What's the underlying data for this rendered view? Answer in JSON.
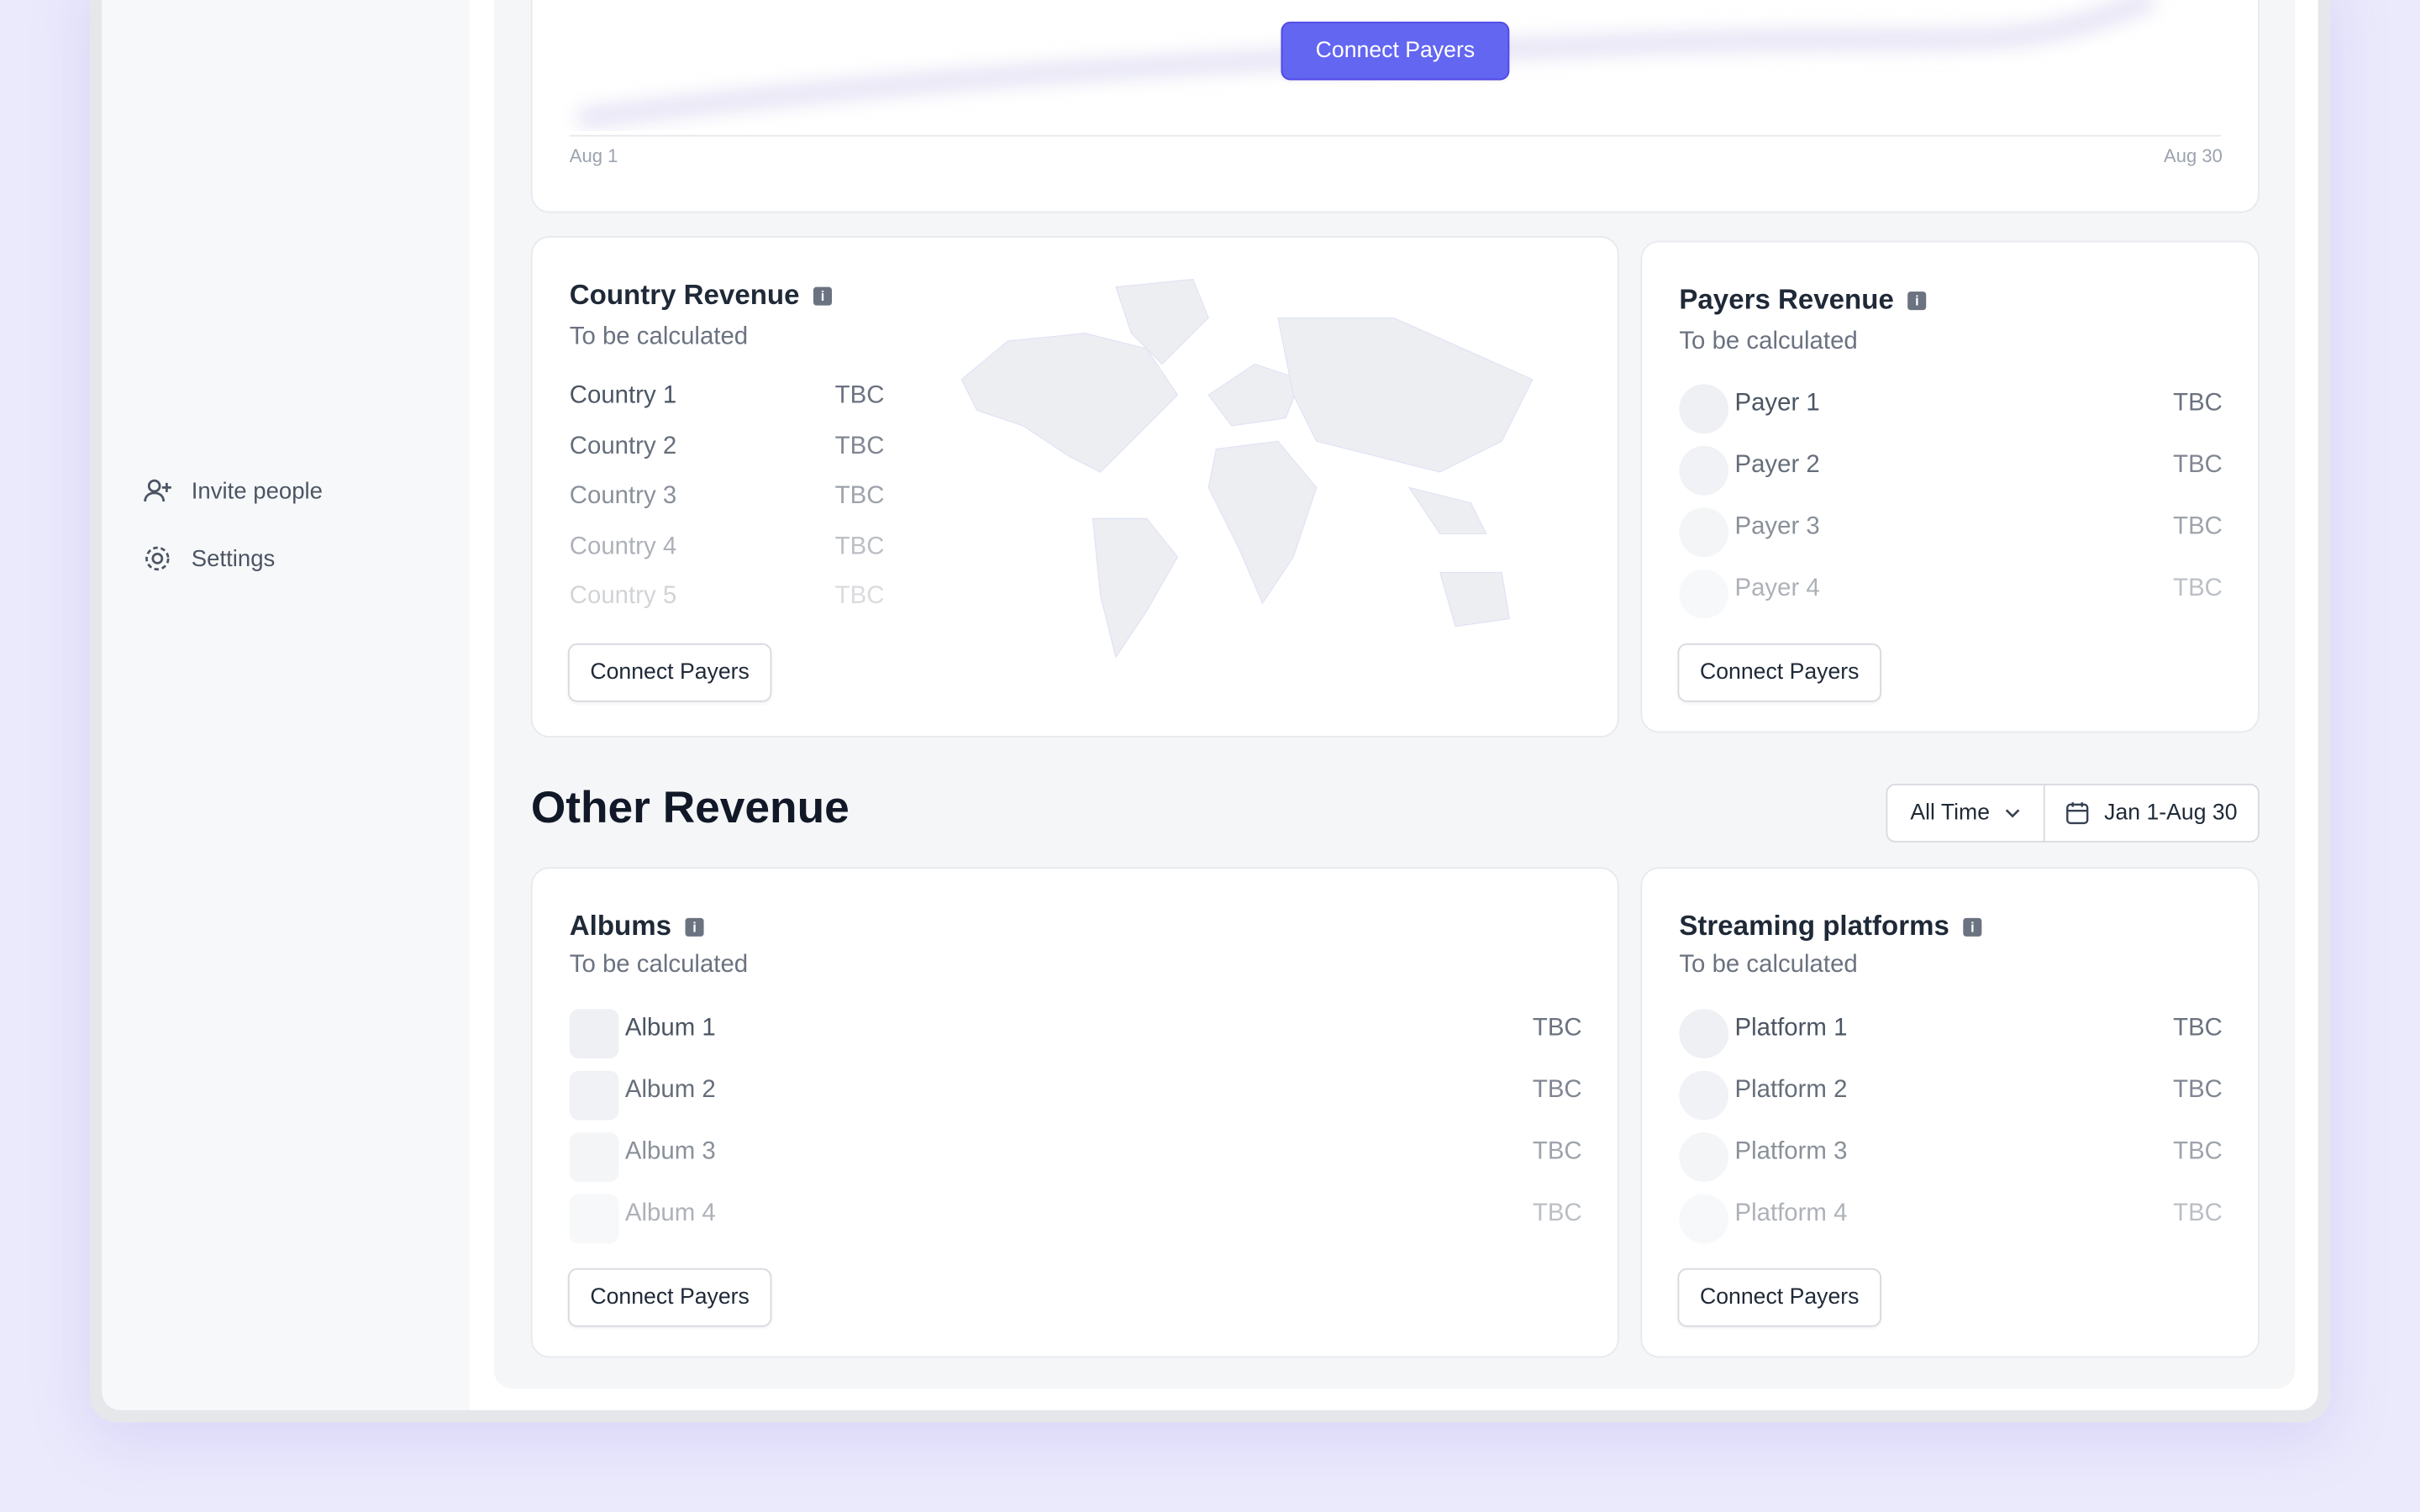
{
  "sidebar": {
    "items": [
      {
        "label": "Invite people"
      },
      {
        "label": "Settings"
      }
    ]
  },
  "top_chart": {
    "button": "Connect Payers",
    "x_start": "Aug 1",
    "x_end": "Aug 30"
  },
  "country_revenue": {
    "title": "Country Revenue",
    "subtitle": "To be calculated",
    "rows": [
      {
        "name": "Country 1",
        "value": "TBC"
      },
      {
        "name": "Country 2",
        "value": "TBC"
      },
      {
        "name": "Country 3",
        "value": "TBC"
      },
      {
        "name": "Country 4",
        "value": "TBC"
      },
      {
        "name": "Country 5",
        "value": "TBC"
      }
    ],
    "button": "Connect Payers"
  },
  "payers_revenue": {
    "title": "Payers Revenue",
    "subtitle": "To be calculated",
    "rows": [
      {
        "name": "Payer 1",
        "value": "TBC"
      },
      {
        "name": "Payer 2",
        "value": "TBC"
      },
      {
        "name": "Payer 3",
        "value": "TBC"
      },
      {
        "name": "Payer 4",
        "value": "TBC"
      }
    ],
    "button": "Connect Payers"
  },
  "other_revenue": {
    "title": "Other Revenue",
    "period": "All Time",
    "date_range": "Jan 1-Aug 30"
  },
  "albums": {
    "title": "Albums",
    "subtitle": "To be calculated",
    "rows": [
      {
        "name": "Album 1",
        "value": "TBC"
      },
      {
        "name": "Album 2",
        "value": "TBC"
      },
      {
        "name": "Album 3",
        "value": "TBC"
      },
      {
        "name": "Album 4",
        "value": "TBC"
      }
    ],
    "button": "Connect Payers"
  },
  "streaming_platforms": {
    "title": "Streaming platforms",
    "subtitle": "To be calculated",
    "rows": [
      {
        "name": "Platform 1",
        "value": "TBC"
      },
      {
        "name": "Platform 2",
        "value": "TBC"
      },
      {
        "name": "Platform 3",
        "value": "TBC"
      },
      {
        "name": "Platform 4",
        "value": "TBC"
      }
    ],
    "button": "Connect Payers"
  }
}
